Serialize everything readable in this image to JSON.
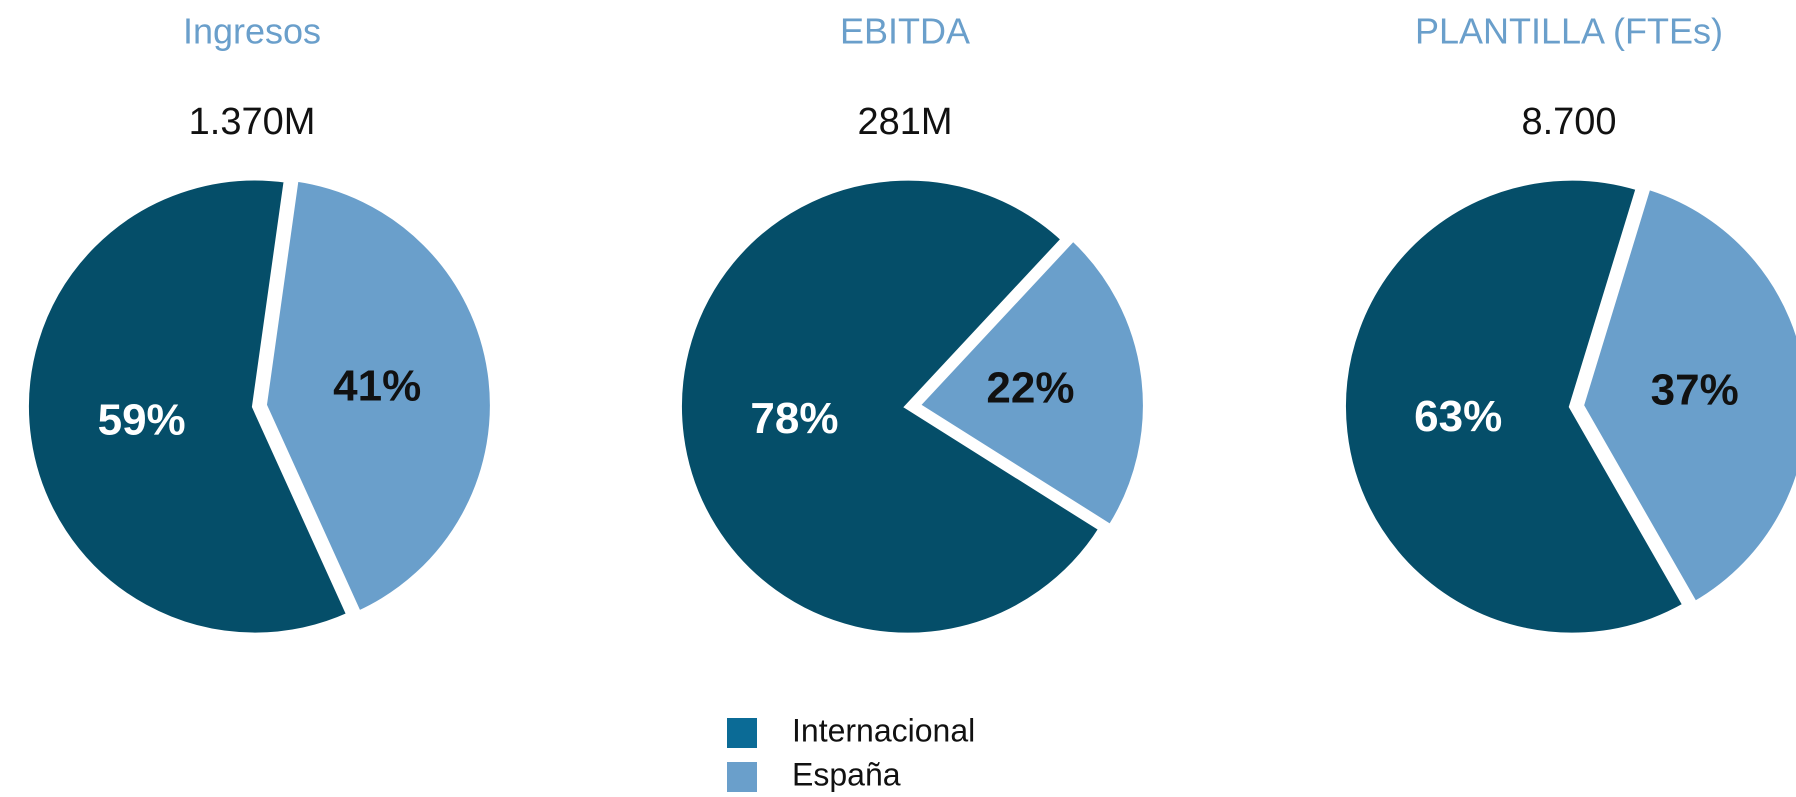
{
  "chart_data": [
    {
      "type": "pie",
      "title": "Ingresos",
      "subtitle": "1.370M",
      "values": [
        59,
        41
      ],
      "value_labels": [
        "59%",
        "41%"
      ],
      "colors": [
        "#054e69",
        "#6a9fcb"
      ]
    },
    {
      "type": "pie",
      "title": "EBITDA",
      "subtitle": "281M",
      "values": [
        78,
        22
      ],
      "value_labels": [
        "78%",
        "22%"
      ],
      "colors": [
        "#054e69",
        "#6a9fcb"
      ]
    },
    {
      "type": "pie",
      "title": "PLANTILLA (FTEs)",
      "subtitle": "8.700",
      "values": [
        63,
        37
      ],
      "value_labels": [
        "63%",
        "37%"
      ],
      "colors": [
        "#054e69",
        "#6a9fcb"
      ]
    }
  ],
  "legend": {
    "labels": [
      "Internacional",
      "España"
    ],
    "colors": [
      "#0b6b96",
      "#6a9fcb"
    ]
  }
}
